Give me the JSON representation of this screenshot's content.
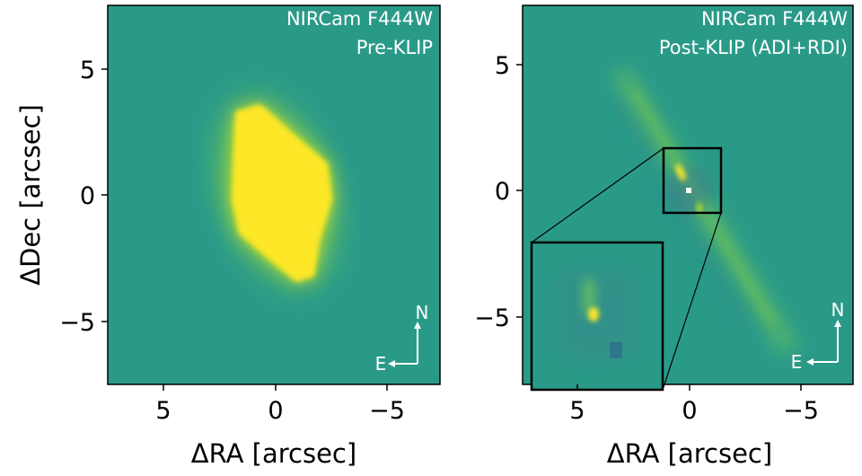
{
  "figure": {
    "ylabel": "ΔDec [arcsec]",
    "xlabel": "ΔRA [arcsec]",
    "compass": {
      "north": "N",
      "east": "E"
    },
    "colors": {
      "background": "#2a9a88",
      "bright": "#fde725",
      "greenish": "#7fcf4d",
      "dark_spot": "#2d5f86",
      "box": "#000000"
    }
  },
  "panels": [
    {
      "name": "pre-klip",
      "title_line1": "NIRCam F444W",
      "title_line2": "Pre-KLIP",
      "x_ticks": [
        "5",
        "0",
        "−5"
      ],
      "y_ticks": [
        "5",
        "0",
        "−5"
      ]
    },
    {
      "name": "post-klip",
      "title_line1": "NIRCam F444W",
      "title_line2": "Post-KLIP (ADI+RDI)",
      "x_ticks": [
        "5",
        "0",
        "−5"
      ],
      "y_ticks": [
        "5",
        "0",
        "−5"
      ]
    }
  ]
}
